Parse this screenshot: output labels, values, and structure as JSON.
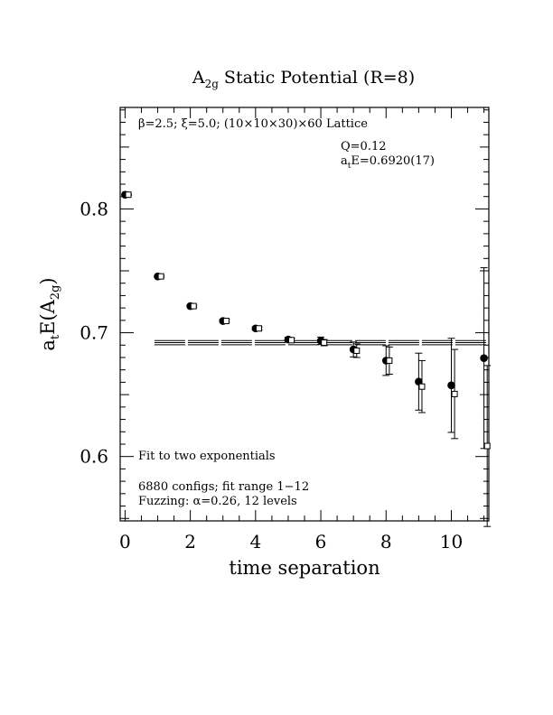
{
  "chart_data": {
    "type": "scatter",
    "title_main": "A",
    "title_sub": "2g",
    "title_rest": " Static Potential (R=8)",
    "xlabel": "time separation",
    "ylabel_a": "a",
    "ylabel_t": "t",
    "ylabel_e": "E(A",
    "ylabel_sub": "2g",
    "ylabel_close": ")",
    "xlim": [
      -0.15,
      11.15
    ],
    "ylim": [
      0.548,
      0.882
    ],
    "x_ticks": [
      0,
      2,
      4,
      6,
      8,
      10
    ],
    "y_ticks": [
      0.6,
      0.7,
      0.8
    ],
    "x_tick_labels": [
      "0",
      "2",
      "4",
      "6",
      "8",
      "10"
    ],
    "y_tick_labels": [
      "0.6",
      "0.7",
      "0.8"
    ],
    "annotations": {
      "lattice": "β=2.5; ξ=5.0; (10×10×30)×60 Lattice",
      "q": "Q=0.12",
      "energy_a": "a",
      "energy_t": "t",
      "energy_rest": "E=0.6920(17)",
      "fit": "Fit to two exponentials",
      "configs": "6880 configs; fit range 1−12",
      "fuzzing": "Fuzzing: α=0.26, 12 levels"
    },
    "fit": {
      "value": 0.692,
      "error": 0.0017
    },
    "series": [
      {
        "marker": "filled-circle",
        "x": [
          0,
          1,
          2,
          3,
          4,
          5,
          6,
          7,
          8,
          9,
          10,
          11
        ],
        "y": [
          0.8115,
          0.7455,
          0.7215,
          0.7095,
          0.7035,
          0.6945,
          0.6935,
          0.6865,
          0.6775,
          0.6605,
          0.6575,
          0.6795
        ],
        "err": [
          0.0005,
          0.0007,
          0.0008,
          0.001,
          0.0013,
          0.0018,
          0.003,
          0.006,
          0.012,
          0.023,
          0.038,
          0.073
        ]
      },
      {
        "marker": "open-square",
        "x": [
          0.1,
          1.1,
          2.1,
          3.1,
          4.1,
          5.1,
          6.1,
          7.1,
          8.1,
          9.1,
          10.1,
          11.1
        ],
        "y": [
          0.8115,
          0.7455,
          0.7215,
          0.7095,
          0.7035,
          0.694,
          0.692,
          0.6855,
          0.6775,
          0.6565,
          0.6505,
          0.6085
        ],
        "err": [
          0.0005,
          0.0007,
          0.0008,
          0.001,
          0.0012,
          0.0016,
          0.0025,
          0.0055,
          0.011,
          0.021,
          0.036,
          0.065
        ]
      }
    ]
  }
}
